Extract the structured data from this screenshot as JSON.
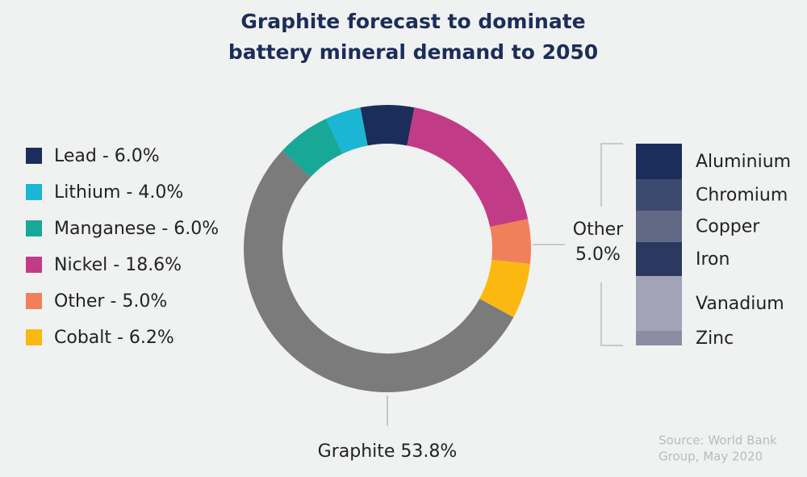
{
  "chart_data": {
    "type": "donut",
    "title": [
      "Graphite forecast to dominate",
      "battery mineral demand to 2050"
    ],
    "values": [
      6.0,
      18.6,
      5.0,
      6.2,
      53.8,
      6.0,
      4.0
    ],
    "value_labels": [
      "Lead - 6.0%",
      "Nickel - 18.6%",
      "Other - 5.0%",
      "Cobalt - 6.2%",
      "Graphite 53.8%",
      "Manganese - 6.0%",
      "Lithium - 4.0%"
    ],
    "colors": [
      "#1b2d5a",
      "#c23b87",
      "#f0805a",
      "#fbb811",
      "#7b7b7b",
      "#17a898",
      "#1ab6d3"
    ],
    "other_breakdown": {
      "type": "stacked-bar",
      "label": "Other",
      "value_label": "5.0%",
      "categories": [
        "Aluminium",
        "Chromium",
        "Copper",
        "Iron",
        "Vanadium",
        "Zinc"
      ],
      "values": [
        0.88,
        0.78,
        0.78,
        0.84,
        1.36,
        0.36
      ],
      "colors": [
        "#1b2d5a",
        "#3d4a70",
        "#626985",
        "#2b3860",
        "#a3a3b8",
        "#8c8ca3"
      ]
    },
    "source": [
      "Source: World Bank",
      "Group, May 2020"
    ]
  }
}
